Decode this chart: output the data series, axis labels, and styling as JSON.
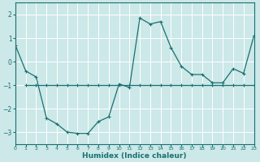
{
  "xlabel": "Humidex (Indice chaleur)",
  "background_color": "#cce8e8",
  "line_color": "#1a7070",
  "grid_color": "#ffffff",
  "curve1_x": [
    0,
    1,
    2,
    3,
    4,
    5,
    6,
    7,
    8,
    9,
    10,
    11,
    12,
    13,
    14,
    15,
    16,
    17,
    18,
    19,
    20,
    21,
    22,
    23
  ],
  "curve1_y": [
    0.7,
    -0.4,
    -0.65,
    -2.4,
    -2.65,
    -3.0,
    -3.05,
    -3.05,
    -2.55,
    -2.35,
    -0.95,
    -1.1,
    1.85,
    1.6,
    1.7,
    0.6,
    -0.2,
    -0.55,
    -0.55,
    -0.9,
    -0.9,
    -0.3,
    -0.5,
    1.1
  ],
  "curve2_x": [
    1,
    2,
    3,
    4,
    5,
    6,
    7,
    8,
    9,
    10,
    11,
    12,
    13,
    14,
    15,
    16,
    17,
    18,
    19,
    20,
    21,
    22,
    23
  ],
  "curve2_y": [
    -1.0,
    -1.0,
    -1.0,
    -1.0,
    -1.0,
    -1.0,
    -1.0,
    -1.0,
    -1.0,
    -1.0,
    -1.0,
    -1.0,
    -1.0,
    -1.0,
    -1.0,
    -1.0,
    -1.0,
    -1.0,
    -1.0,
    -1.0,
    -1.0,
    -1.0,
    -1.0
  ],
  "xlim": [
    0,
    23
  ],
  "ylim": [
    -3.5,
    2.5
  ],
  "yticks": [
    -3,
    -2,
    -1,
    0,
    1,
    2
  ],
  "xticks": [
    0,
    1,
    2,
    3,
    4,
    5,
    6,
    7,
    8,
    9,
    10,
    11,
    12,
    13,
    14,
    15,
    16,
    17,
    18,
    19,
    20,
    21,
    22,
    23
  ]
}
